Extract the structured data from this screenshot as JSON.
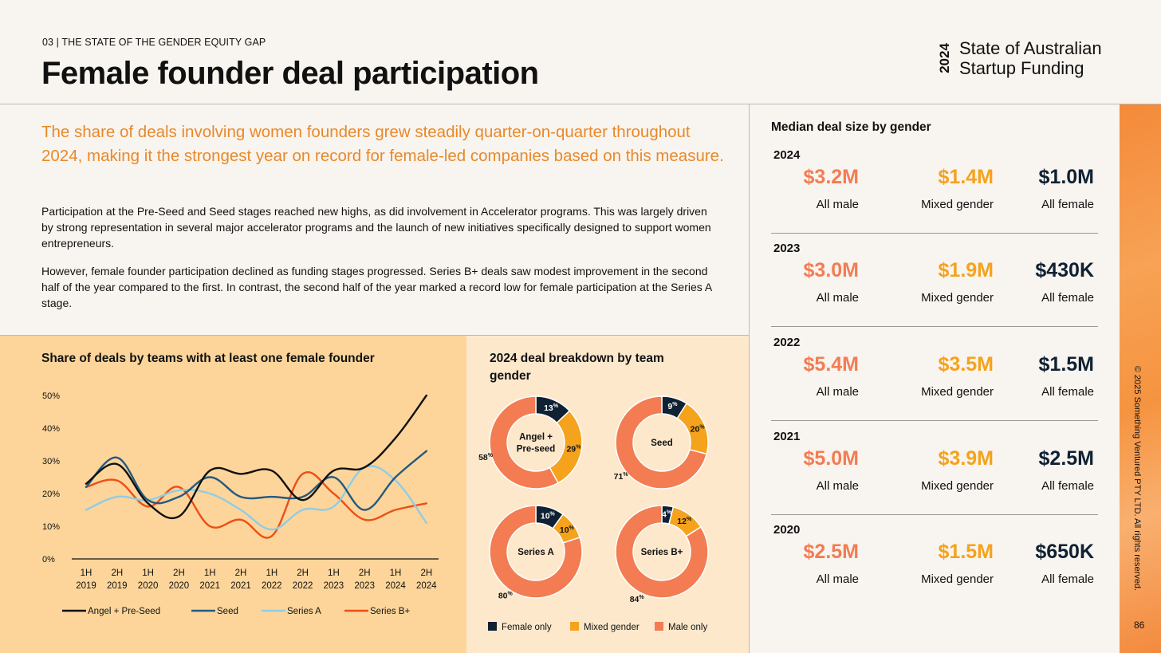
{
  "header": {
    "kicker": "03 | THE STATE OF THE GENDER EQUITY GAP",
    "title": "Female founder deal participation",
    "brand_year": "2024",
    "brand_line1": "State of Australian",
    "brand_line2": "Startup Funding"
  },
  "intro": {
    "lead": "The share of deals involving women founders grew steadily quarter-on-quarter throughout 2024, making it the strongest year on record for female-led companies based on this measure.",
    "para1": "Participation at the Pre-Seed and Seed stages reached new highs, as did involvement in Accelerator programs. This was largely driven by strong representation in several major accelerator programs and the launch of new initiatives specifically designed to support women entrepreneurs.",
    "para2": "However, female founder participation declined as funding stages progressed. Series B+ deals saw modest improvement in the second half of the year compared to the first. In contrast, the second half of the year marked a record low for female participation at the Series A stage."
  },
  "colors": {
    "female_only": "#0f2133",
    "mixed_gender": "#f5a21d",
    "male_only": "#f37c52",
    "angel": "#111111",
    "seed": "#235a80",
    "series_a": "#8fcde6",
    "series_b": "#ec4f16"
  },
  "chart_data": [
    {
      "type": "line",
      "title": "Share of deals by teams with at least one female founder",
      "categories": [
        "1H 2019",
        "2H 2019",
        "1H 2020",
        "2H 2020",
        "1H 2021",
        "2H 2021",
        "1H 2022",
        "2H 2022",
        "1H 2023",
        "2H 2023",
        "1H 2024",
        "2H 2024"
      ],
      "y_ticks": [
        "0%",
        "10%",
        "20%",
        "30%",
        "40%",
        "50%"
      ],
      "ylim": [
        0,
        50
      ],
      "unit": "%",
      "grid": false,
      "legend_position": "bottom",
      "series": [
        {
          "name": "Angel + Pre-Seed",
          "color": "#111111",
          "values": [
            23,
            29,
            17,
            13,
            27,
            26,
            27,
            18,
            27,
            28,
            37,
            50
          ]
        },
        {
          "name": "Seed",
          "color": "#235a80",
          "values": [
            22,
            31,
            18,
            19,
            25,
            19,
            19,
            19,
            25,
            15,
            25,
            33
          ]
        },
        {
          "name": "Series A",
          "color": "#8fcde6",
          "values": [
            15,
            19,
            18,
            21,
            20,
            15,
            9,
            15,
            16,
            28,
            24,
            11
          ]
        },
        {
          "name": "Series B+",
          "color": "#ec4f16",
          "values": [
            22,
            24,
            16,
            22,
            10,
            12,
            7,
            26,
            20,
            12,
            15,
            17
          ]
        }
      ]
    },
    {
      "type": "pie",
      "title": "2024 deal breakdown by team gender",
      "legend": [
        "Female only",
        "Mixed gender",
        "Male only"
      ],
      "legend_position": "bottom",
      "donuts": [
        {
          "name": "Angel +\nPre-seed",
          "female_only": 13,
          "mixed_gender": 29,
          "male_only": 58
        },
        {
          "name": "Seed",
          "female_only": 9,
          "mixed_gender": 20,
          "male_only": 71
        },
        {
          "name": "Series A",
          "female_only": 10,
          "mixed_gender": 10,
          "male_only": 80
        },
        {
          "name": "Series B+",
          "female_only": 4,
          "mixed_gender": 12,
          "male_only": 84
        }
      ]
    }
  ],
  "median": {
    "title": "Median deal size by gender",
    "years": [
      {
        "year": "2024",
        "male": "$3.2M",
        "mixed": "$1.4M",
        "female": "$1.0M"
      },
      {
        "year": "2023",
        "male": "$3.0M",
        "mixed": "$1.9M",
        "female": "$430K"
      },
      {
        "year": "2022",
        "male": "$5.4M",
        "mixed": "$3.5M",
        "female": "$1.5M"
      },
      {
        "year": "2021",
        "male": "$5.0M",
        "mixed": "$3.9M",
        "female": "$2.5M"
      },
      {
        "year": "2020",
        "male": "$2.5M",
        "mixed": "$1.5M",
        "female": "$650K"
      }
    ],
    "label_male": "All male",
    "label_mixed": "Mixed gender",
    "label_female": "All female"
  },
  "footer": {
    "copyright": "© 2025 Something Ventured PTY LTD. All rights reserved.",
    "page_number": "86"
  }
}
